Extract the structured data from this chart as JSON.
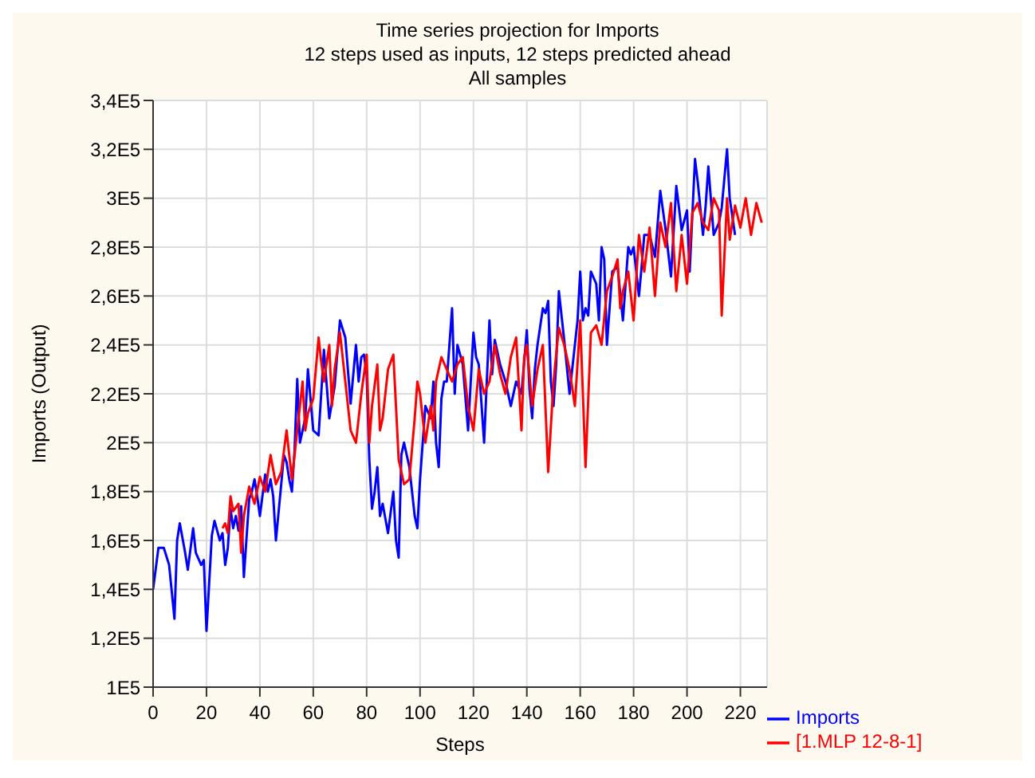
{
  "chart_data": {
    "type": "line",
    "title": "Time series projection for Imports",
    "subtitle": "12 steps used as inputs, 12 steps predicted ahead\nAll samples",
    "xlabel": "Steps",
    "ylabel": "Imports (Output)",
    "xlim": [
      0,
      230
    ],
    "xticks": [
      0,
      20,
      40,
      60,
      80,
      100,
      120,
      140,
      160,
      180,
      200,
      220
    ],
    "ylim": [
      100000,
      340000
    ],
    "yticks": [
      {
        "value": 100000,
        "label": "1E5"
      },
      {
        "value": 120000,
        "label": "1,2E5"
      },
      {
        "value": 140000,
        "label": "1,4E5"
      },
      {
        "value": 160000,
        "label": "1,6E5"
      },
      {
        "value": 180000,
        "label": "1,8E5"
      },
      {
        "value": 200000,
        "label": "2E5"
      },
      {
        "value": 220000,
        "label": "2,2E5"
      },
      {
        "value": 240000,
        "label": "2,4E5"
      },
      {
        "value": 260000,
        "label": "2,6E5"
      },
      {
        "value": 280000,
        "label": "2,8E5"
      },
      {
        "value": 300000,
        "label": "3E5"
      },
      {
        "value": 320000,
        "label": "3,2E5"
      },
      {
        "value": 340000,
        "label": "3,4E5"
      }
    ],
    "grid": true,
    "legend": "bottom right",
    "marker": "none",
    "line_style": "solid",
    "series": [
      {
        "name": "Imports",
        "color": "#0000ff",
        "x": [
          0,
          2,
          4,
          6,
          8,
          9,
          10,
          12,
          13,
          15,
          16,
          18,
          19,
          20,
          22,
          23,
          25,
          26,
          27,
          28,
          29,
          30,
          31,
          32,
          33,
          34,
          36,
          37,
          38,
          39,
          40,
          42,
          43,
          44,
          45,
          46,
          48,
          49,
          50,
          51,
          52,
          53,
          54,
          55,
          57,
          58,
          60,
          62,
          64,
          66,
          68,
          70,
          72,
          74,
          76,
          77,
          78,
          79,
          80,
          81,
          82,
          83,
          84,
          85,
          86,
          88,
          90,
          91,
          92,
          93,
          94,
          96,
          98,
          99,
          100,
          102,
          104,
          105,
          106,
          107,
          108,
          109,
          110,
          112,
          113,
          114,
          116,
          118,
          120,
          121,
          122,
          124,
          126,
          127,
          128,
          130,
          132,
          134,
          136,
          138,
          140,
          141,
          142,
          143,
          144,
          146,
          147,
          148,
          149,
          150,
          151,
          152,
          154,
          156,
          158,
          159,
          160,
          161,
          162,
          163,
          164,
          166,
          167,
          168,
          169,
          170,
          172,
          174,
          176,
          178,
          179,
          180,
          182,
          183,
          184,
          186,
          188,
          190,
          192,
          194,
          196,
          198,
          200,
          201,
          203,
          204,
          206,
          207,
          208,
          210,
          212,
          213,
          215,
          216,
          218
        ],
        "values": [
          140000,
          157000,
          157000,
          150000,
          128000,
          160000,
          167000,
          155000,
          148000,
          165000,
          155000,
          150000,
          152000,
          123000,
          162000,
          168000,
          160000,
          163000,
          150000,
          157000,
          173000,
          165000,
          170000,
          164000,
          174000,
          145000,
          177000,
          180000,
          185000,
          178000,
          170000,
          187000,
          180000,
          185000,
          178000,
          160000,
          183000,
          195000,
          192000,
          185000,
          180000,
          197000,
          226000,
          200000,
          210000,
          230000,
          205000,
          203000,
          238000,
          210000,
          223000,
          250000,
          243000,
          216000,
          240000,
          225000,
          235000,
          236000,
          228000,
          193000,
          173000,
          180000,
          190000,
          170000,
          175000,
          163000,
          180000,
          160000,
          153000,
          195000,
          200000,
          190000,
          170000,
          165000,
          185000,
          215000,
          210000,
          225000,
          200000,
          190000,
          218000,
          225000,
          225000,
          255000,
          220000,
          240000,
          232000,
          205000,
          245000,
          235000,
          232000,
          200000,
          250000,
          228000,
          242000,
          232000,
          225000,
          215000,
          225000,
          220000,
          246000,
          222000,
          210000,
          230000,
          240000,
          255000,
          253000,
          258000,
          225000,
          215000,
          232000,
          262000,
          242000,
          220000,
          240000,
          250000,
          270000,
          250000,
          255000,
          252000,
          270000,
          265000,
          250000,
          280000,
          275000,
          240000,
          270000,
          272000,
          250000,
          280000,
          277000,
          280000,
          260000,
          272000,
          285000,
          285000,
          276000,
          303000,
          287000,
          268000,
          305000,
          287000,
          295000,
          270000,
          316000,
          307000,
          285000,
          297000,
          313000,
          285000,
          290000,
          296000,
          320000,
          300000,
          285000
        ]
      },
      {
        "name": "[1.MLP 12-8-1]",
        "color": "#ff0000",
        "x": [
          26,
          27,
          28,
          29,
          30,
          32,
          33,
          34,
          36,
          38,
          40,
          42,
          44,
          46,
          48,
          50,
          52,
          54,
          56,
          57,
          58,
          60,
          62,
          63,
          64,
          66,
          67,
          68,
          70,
          72,
          74,
          76,
          78,
          80,
          81,
          82,
          84,
          85,
          86,
          88,
          90,
          92,
          94,
          96,
          98,
          99,
          100,
          102,
          104,
          105,
          106,
          108,
          110,
          112,
          114,
          116,
          118,
          120,
          122,
          124,
          126,
          128,
          130,
          132,
          134,
          136,
          138,
          139,
          140,
          142,
          144,
          146,
          148,
          150,
          152,
          154,
          156,
          158,
          160,
          162,
          164,
          166,
          168,
          170,
          172,
          174,
          175,
          176,
          178,
          180,
          182,
          184,
          186,
          188,
          190,
          192,
          194,
          196,
          198,
          200,
          202,
          204,
          206,
          208,
          210,
          212,
          213,
          215,
          216,
          218,
          220,
          222,
          224,
          226,
          228
        ],
        "values": [
          165000,
          167000,
          163000,
          178000,
          172000,
          175000,
          155000,
          170000,
          182000,
          175000,
          186000,
          180000,
          195000,
          183000,
          188000,
          205000,
          185000,
          205000,
          225000,
          205000,
          212000,
          218000,
          243000,
          233000,
          225000,
          240000,
          215000,
          230000,
          245000,
          225000,
          205000,
          200000,
          220000,
          236000,
          200000,
          215000,
          232000,
          205000,
          210000,
          230000,
          236000,
          193000,
          183000,
          185000,
          210000,
          225000,
          220000,
          200000,
          215000,
          205000,
          225000,
          235000,
          230000,
          225000,
          232000,
          235000,
          215000,
          205000,
          230000,
          220000,
          225000,
          240000,
          228000,
          220000,
          235000,
          243000,
          205000,
          235000,
          240000,
          215000,
          230000,
          240000,
          188000,
          225000,
          247000,
          240000,
          230000,
          215000,
          250000,
          190000,
          245000,
          248000,
          240000,
          262000,
          268000,
          275000,
          255000,
          262000,
          270000,
          250000,
          285000,
          270000,
          288000,
          260000,
          290000,
          280000,
          298000,
          262000,
          285000,
          265000,
          294000,
          298000,
          290000,
          287000,
          300000,
          295000,
          252000,
          300000,
          283000,
          297000,
          288000,
          300000,
          285000,
          298000,
          290000
        ]
      }
    ]
  }
}
